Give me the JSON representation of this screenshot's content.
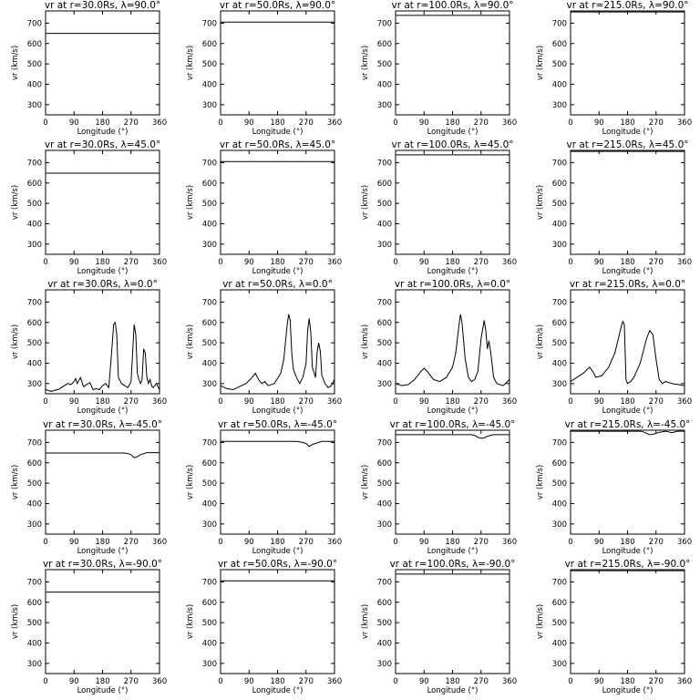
{
  "xlabel": "Longitude (°)",
  "ylabel": "vr (km/s)",
  "xlim": [
    0,
    360
  ],
  "ylim": [
    250,
    760
  ],
  "xticks": [
    0,
    90,
    180,
    270,
    360
  ],
  "yticks": [
    300,
    400,
    500,
    600,
    700
  ],
  "chart_data": [
    {
      "type": "line",
      "title": "vr at r=30.0Rs, λ=90.0°",
      "ylabel": "vr (km/s)",
      "xlabel": "Longitude (°)",
      "xlim": [
        0,
        360
      ],
      "ylim": [
        250,
        760
      ],
      "series": [
        {
          "x": [
            0,
            360
          ],
          "y": [
            650,
            650
          ]
        }
      ]
    },
    {
      "type": "line",
      "title": "vr at r=50.0Rs, λ=90.0°",
      "ylabel": "vr (km/s)",
      "xlabel": "Longitude (°)",
      "xlim": [
        0,
        360
      ],
      "ylim": [
        250,
        760
      ],
      "series": [
        {
          "x": [
            0,
            360
          ],
          "y": [
            705,
            705
          ]
        }
      ]
    },
    {
      "type": "line",
      "title": "vr at r=100.0Rs, λ=90.0°",
      "ylabel": "vr (km/s)",
      "xlabel": "Longitude (°)",
      "xlim": [
        0,
        360
      ],
      "ylim": [
        250,
        760
      ],
      "series": [
        {
          "x": [
            0,
            360
          ],
          "y": [
            738,
            738
          ]
        }
      ]
    },
    {
      "type": "line",
      "title": "vr at r=215.0Rs, λ=90.0°",
      "ylabel": "vr (km/s)",
      "xlabel": "Longitude (°)",
      "xlim": [
        0,
        360
      ],
      "ylim": [
        250,
        760
      ],
      "series": [
        {
          "x": [
            0,
            360
          ],
          "y": [
            755,
            755
          ]
        }
      ]
    },
    {
      "type": "line",
      "title": "vr at r=30.0Rs, λ=45.0°",
      "ylabel": "vr (km/s)",
      "xlabel": "Longitude (°)",
      "xlim": [
        0,
        360
      ],
      "ylim": [
        250,
        760
      ],
      "series": [
        {
          "x": [
            0,
            360
          ],
          "y": [
            648,
            648
          ]
        }
      ]
    },
    {
      "type": "line",
      "title": "vr at r=50.0Rs, λ=45.0°",
      "ylabel": "vr (km/s)",
      "xlabel": "Longitude (°)",
      "xlim": [
        0,
        360
      ],
      "ylim": [
        250,
        760
      ],
      "series": [
        {
          "x": [
            0,
            360
          ],
          "y": [
            705,
            705
          ]
        }
      ]
    },
    {
      "type": "line",
      "title": "vr at r=100.0Rs, λ=45.0°",
      "ylabel": "vr (km/s)",
      "xlabel": "Longitude (°)",
      "xlim": [
        0,
        360
      ],
      "ylim": [
        250,
        760
      ],
      "series": [
        {
          "x": [
            0,
            360
          ],
          "y": [
            738,
            738
          ]
        }
      ]
    },
    {
      "type": "line",
      "title": "vr at r=215.0Rs, λ=45.0°",
      "ylabel": "vr (km/s)",
      "xlabel": "Longitude (°)",
      "xlim": [
        0,
        360
      ],
      "ylim": [
        250,
        760
      ],
      "series": [
        {
          "x": [
            0,
            360
          ],
          "y": [
            755,
            755
          ]
        }
      ]
    },
    {
      "type": "line",
      "title": "vr at r=30.0Rs, λ=0.0°",
      "ylabel": "vr (km/s)",
      "xlabel": "Longitude (°)",
      "xlim": [
        0,
        360
      ],
      "ylim": [
        250,
        760
      ],
      "series": [
        {
          "x": [
            0,
            10,
            20,
            30,
            40,
            50,
            60,
            70,
            80,
            90,
            95,
            100,
            110,
            120,
            130,
            140,
            150,
            160,
            170,
            180,
            190,
            200,
            210,
            215,
            220,
            225,
            230,
            240,
            250,
            260,
            270,
            275,
            280,
            285,
            290,
            295,
            300,
            305,
            310,
            315,
            320,
            325,
            330,
            335,
            340,
            350,
            360
          ],
          "y": [
            270,
            265,
            262,
            268,
            270,
            280,
            290,
            300,
            295,
            310,
            325,
            300,
            330,
            285,
            295,
            305,
            270,
            275,
            270,
            290,
            300,
            280,
            480,
            590,
            600,
            540,
            330,
            300,
            290,
            280,
            310,
            450,
            590,
            540,
            350,
            320,
            300,
            320,
            470,
            450,
            330,
            300,
            320,
            290,
            280,
            300,
            270
          ]
        }
      ]
    },
    {
      "type": "line",
      "title": "vr at r=50.0Rs, λ=0.0°",
      "ylabel": "vr (km/s)",
      "xlabel": "Longitude (°)",
      "xlim": [
        0,
        360
      ],
      "ylim": [
        250,
        760
      ],
      "series": [
        {
          "x": [
            0,
            20,
            40,
            60,
            80,
            100,
            110,
            120,
            130,
            140,
            150,
            170,
            190,
            200,
            210,
            215,
            220,
            225,
            230,
            240,
            250,
            260,
            270,
            275,
            280,
            285,
            290,
            300,
            305,
            310,
            315,
            320,
            330,
            340,
            350,
            360
          ],
          "y": [
            290,
            275,
            270,
            285,
            300,
            330,
            350,
            320,
            300,
            310,
            290,
            300,
            350,
            420,
            580,
            640,
            610,
            450,
            370,
            330,
            300,
            330,
            400,
            560,
            620,
            550,
            380,
            330,
            450,
            500,
            460,
            340,
            300,
            280,
            290,
            320
          ]
        }
      ]
    },
    {
      "type": "line",
      "title": "vr at r=100.0Rs, λ=0.0°",
      "ylabel": "vr (km/s)",
      "xlabel": "Longitude (°)",
      "xlim": [
        0,
        360
      ],
      "ylim": [
        250,
        760
      ],
      "series": [
        {
          "x": [
            0,
            20,
            40,
            60,
            80,
            90,
            100,
            120,
            140,
            160,
            180,
            190,
            200,
            205,
            210,
            220,
            230,
            240,
            250,
            260,
            270,
            280,
            285,
            290,
            295,
            300,
            310,
            320,
            340,
            360
          ],
          "y": [
            300,
            290,
            295,
            320,
            360,
            375,
            360,
            320,
            310,
            330,
            380,
            450,
            580,
            640,
            600,
            420,
            330,
            310,
            320,
            360,
            520,
            610,
            560,
            470,
            510,
            460,
            330,
            300,
            290,
            320
          ]
        }
      ]
    },
    {
      "type": "line",
      "title": "vr at r=215.0Rs, λ=0.0°",
      "ylabel": "vr (km/s)",
      "xlabel": "Longitude (°)",
      "xlim": [
        0,
        360
      ],
      "ylim": [
        250,
        760
      ],
      "series": [
        {
          "x": [
            0,
            20,
            40,
            60,
            70,
            80,
            100,
            120,
            140,
            160,
            165,
            170,
            175,
            180,
            190,
            200,
            220,
            240,
            250,
            260,
            270,
            280,
            290,
            300,
            320,
            340,
            360
          ],
          "y": [
            310,
            330,
            350,
            380,
            360,
            330,
            340,
            380,
            450,
            580,
            605,
            590,
            320,
            300,
            310,
            330,
            400,
            520,
            560,
            540,
            420,
            320,
            300,
            310,
            300,
            295,
            290
          ]
        }
      ]
    },
    {
      "type": "line",
      "title": "vr at r=30.0Rs, λ=-45.0°",
      "ylabel": "vr (km/s)",
      "xlabel": "Longitude (°)",
      "xlim": [
        0,
        360
      ],
      "ylim": [
        250,
        760
      ],
      "series": [
        {
          "x": [
            0,
            250,
            260,
            270,
            280,
            290,
            300,
            310,
            320,
            330,
            360
          ],
          "y": [
            648,
            648,
            645,
            640,
            625,
            630,
            640,
            645,
            650,
            650,
            650
          ]
        }
      ]
    },
    {
      "type": "line",
      "title": "vr at r=50.0Rs, λ=-45.0°",
      "ylabel": "vr (km/s)",
      "xlabel": "Longitude (°)",
      "xlim": [
        0,
        360
      ],
      "ylim": [
        250,
        760
      ],
      "series": [
        {
          "x": [
            0,
            240,
            260,
            270,
            280,
            290,
            300,
            310,
            320,
            330,
            360
          ],
          "y": [
            705,
            705,
            700,
            695,
            680,
            690,
            695,
            700,
            705,
            705,
            705
          ]
        }
      ]
    },
    {
      "type": "line",
      "title": "vr at r=100.0Rs, λ=-45.0°",
      "ylabel": "vr (km/s)",
      "xlabel": "Longitude (°)",
      "xlim": [
        0,
        360
      ],
      "ylim": [
        250,
        760
      ],
      "series": [
        {
          "x": [
            0,
            240,
            250,
            260,
            270,
            280,
            290,
            300,
            310,
            320,
            360
          ],
          "y": [
            738,
            738,
            735,
            725,
            720,
            722,
            730,
            735,
            738,
            738,
            738
          ]
        }
      ]
    },
    {
      "type": "line",
      "title": "vr at r=215.0Rs, λ=-45.0°",
      "ylabel": "vr (km/s)",
      "xlabel": "Longitude (°)",
      "xlim": [
        0,
        360
      ],
      "ylim": [
        250,
        760
      ],
      "series": [
        {
          "x": [
            0,
            200,
            220,
            230,
            240,
            250,
            260,
            270,
            280,
            290,
            300,
            310,
            320,
            330,
            340,
            360
          ],
          "y": [
            755,
            755,
            755,
            752,
            745,
            738,
            740,
            745,
            750,
            752,
            755,
            752,
            748,
            752,
            755,
            755
          ]
        }
      ]
    },
    {
      "type": "line",
      "title": "vr at r=30.0Rs, λ=-90.0°",
      "ylabel": "vr (km/s)",
      "xlabel": "Longitude (°)",
      "xlim": [
        0,
        360
      ],
      "ylim": [
        250,
        760
      ],
      "series": [
        {
          "x": [
            0,
            360
          ],
          "y": [
            650,
            650
          ]
        }
      ]
    },
    {
      "type": "line",
      "title": "vr at r=50.0Rs, λ=-90.0°",
      "ylabel": "vr (km/s)",
      "xlabel": "Longitude (°)",
      "xlim": [
        0,
        360
      ],
      "ylim": [
        250,
        760
      ],
      "series": [
        {
          "x": [
            0,
            360
          ],
          "y": [
            705,
            705
          ]
        }
      ]
    },
    {
      "type": "line",
      "title": "vr at r=100.0Rs, λ=-90.0°",
      "ylabel": "vr (km/s)",
      "xlabel": "Longitude (°)",
      "xlim": [
        0,
        360
      ],
      "ylim": [
        250,
        760
      ],
      "series": [
        {
          "x": [
            0,
            360
          ],
          "y": [
            738,
            738
          ]
        }
      ]
    },
    {
      "type": "line",
      "title": "vr at r=215.0Rs, λ=-90.0°",
      "ylabel": "vr (km/s)",
      "xlabel": "Longitude (°)",
      "xlim": [
        0,
        360
      ],
      "ylim": [
        250,
        760
      ],
      "series": [
        {
          "x": [
            0,
            360
          ],
          "y": [
            755,
            755
          ]
        }
      ]
    }
  ]
}
